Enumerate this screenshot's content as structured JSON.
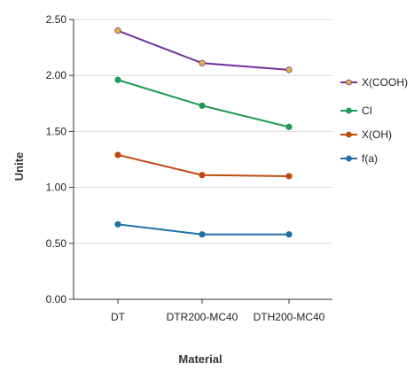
{
  "chart_data": {
    "type": "line",
    "title": "",
    "xlabel": "Material",
    "ylabel": "Unite",
    "categories": [
      "DT",
      "DTR200-MC40",
      "DTH200-MC40"
    ],
    "ylim": [
      0,
      2.5
    ],
    "yticks": [
      "0.00",
      "0.50",
      "1.00",
      "1.50",
      "2.00",
      "2.50"
    ],
    "grid": true,
    "legend": "right",
    "series": [
      {
        "name": "X(COOH)",
        "values": [
          2.4,
          2.11,
          2.05
        ],
        "color": "#7030A0",
        "marker_color": "#E8B830"
      },
      {
        "name": "CI",
        "values": [
          1.96,
          1.73,
          1.54
        ],
        "color": "#1E9A52",
        "marker_color": "#1E9A52"
      },
      {
        "name": "X(OH)",
        "values": [
          1.29,
          1.11,
          1.1
        ],
        "color": "#C04A10",
        "marker_color": "#C04A10"
      },
      {
        "name": "f(a)",
        "values": [
          0.67,
          0.58,
          0.58
        ],
        "color": "#1F6FA8",
        "marker_color": "#1F6FA8"
      }
    ]
  }
}
